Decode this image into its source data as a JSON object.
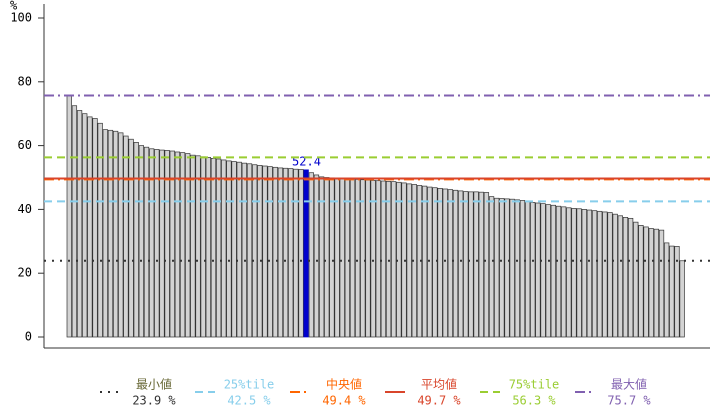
{
  "chart_data": {
    "type": "bar",
    "ylabel": "%",
    "values": [
      75.7,
      72.5,
      71,
      70,
      69,
      68.5,
      67,
      65,
      64.8,
      64.5,
      64,
      63,
      62,
      61,
      60,
      59.5,
      59,
      58.8,
      58.6,
      58.5,
      58.3,
      58,
      57.8,
      57.5,
      57,
      56.8,
      56.5,
      56.3,
      56,
      55.8,
      55.5,
      55.2,
      55,
      54.8,
      54.5,
      54.3,
      54,
      53.8,
      53.6,
      53.4,
      53.2,
      53,
      52.9,
      52.8,
      52.6,
      52.5,
      52.4,
      51.5,
      50.8,
      50.2,
      50,
      49.9,
      49.8,
      49.7,
      49.6,
      49.5,
      49.4,
      49.3,
      49.2,
      49.1,
      49,
      48.9,
      48.8,
      48.7,
      48.5,
      48.3,
      48,
      47.8,
      47.5,
      47.3,
      47,
      46.8,
      46.6,
      46.4,
      46.2,
      46,
      45.8,
      45.6,
      45.5,
      45.5,
      45.4,
      45.3,
      44,
      43.5,
      43.4,
      43.3,
      43.2,
      43,
      42.8,
      42.5,
      42.2,
      42,
      41.8,
      41.5,
      41.3,
      41,
      40.8,
      40.5,
      40.3,
      40.2,
      40,
      39.8,
      39.6,
      39.4,
      39.2,
      39,
      38.5,
      38,
      37.5,
      37.2,
      36,
      35,
      34.5,
      34,
      33.8,
      33.5,
      29.5,
      28.5,
      28.4,
      23.9
    ],
    "color": "#d3d3d3",
    "highlight_index": 46,
    "highlight_color": "#0000cc",
    "ylim": [
      0,
      100
    ],
    "yticks": [
      0,
      20,
      40,
      60,
      80,
      100
    ],
    "reference_lines": [
      {
        "name": "最小値",
        "value": 23.9,
        "value_label": "23.9 %",
        "color": "#333333",
        "text_color": "#666633",
        "dash": "dotted"
      },
      {
        "name": "25%tile",
        "value": 42.5,
        "value_label": "42.5 %",
        "color": "#87ceeb",
        "text_color": "#87ceeb",
        "dash": "dashed"
      },
      {
        "name": "中央値",
        "value": 49.4,
        "value_label": "49.4 %",
        "color": "#ff6600",
        "text_color": "#ff6600",
        "dash": "dashdot"
      },
      {
        "name": "平均値",
        "value": 49.7,
        "value_label": "49.7 %",
        "color": "#d9452b",
        "text_color": "#d9452b",
        "dash": "solid"
      },
      {
        "name": "75%tile",
        "value": 56.3,
        "value_label": "56.3 %",
        "color": "#9acd32",
        "text_color": "#9acd32",
        "dash": "dashed"
      },
      {
        "name": "最大値",
        "value": 75.7,
        "value_label": "75.7 %",
        "color": "#8060b0",
        "text_color": "#8060b0",
        "dash": "dashdot"
      }
    ]
  }
}
